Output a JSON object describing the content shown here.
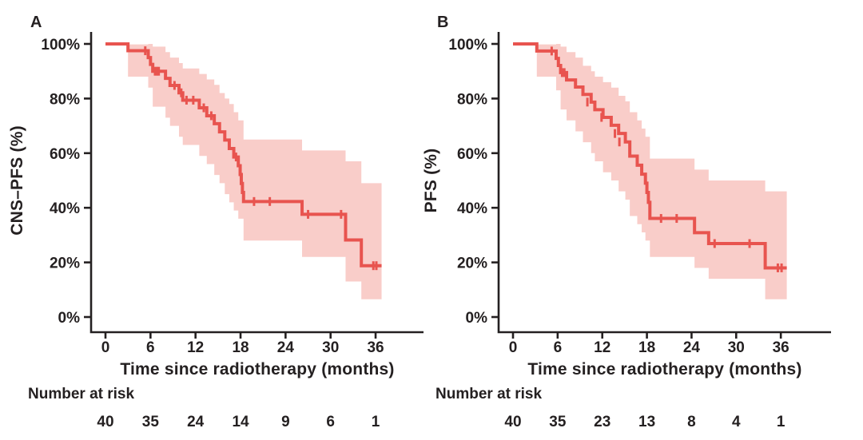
{
  "figure": {
    "background": "#ffffff",
    "text_color": "#242021",
    "panels": [
      {
        "panel_label": "A",
        "ylabel": "CNS–PFS (%)",
        "xlabel": "Time since radiotherapy (months)",
        "risk_label": "Number at risk"
      },
      {
        "panel_label": "B",
        "ylabel": "PFS (%)",
        "xlabel": "Time since radiotherapy (months)",
        "risk_label": "Number at risk"
      }
    ]
  },
  "chart_data": [
    {
      "type": "line",
      "subtype": "kaplan-meier-step",
      "panel": "A",
      "title": "A",
      "ylabel": "CNS–PFS (%)",
      "xlabel": "Time since radiotherapy (months)",
      "xticks": [
        0,
        6,
        12,
        18,
        24,
        30,
        36
      ],
      "yticks": [
        0,
        20,
        40,
        60,
        80,
        100
      ],
      "ytick_format": "percent",
      "xlim": [
        0,
        38
      ],
      "ylim": [
        0,
        100
      ],
      "grid": false,
      "legend": null,
      "line_color": "#e8544f",
      "band_color": "#f9cdc9",
      "curve_end_t": 36.8,
      "steps": {
        "t": [
          0,
          3.0,
          5.7,
          6.0,
          6.3,
          8.0,
          8.6,
          9.8,
          10.3,
          12.5,
          13.5,
          14.5,
          15.2,
          15.9,
          16.5,
          17.1,
          17.7,
          17.95,
          18.1,
          18.25,
          18.4,
          26.2,
          32.0,
          34.1
        ],
        "survival_pct": [
          100,
          97.5,
          95.0,
          92.5,
          90.0,
          87.4,
          84.8,
          82.1,
          79.4,
          76.6,
          73.7,
          70.8,
          67.8,
          64.8,
          61.7,
          58.6,
          55.4,
          52.2,
          48.9,
          45.6,
          42.3,
          37.6,
          28.2,
          18.8
        ]
      },
      "censor_marks": {
        "t": [
          5.3,
          6.6,
          6.85,
          7.1,
          9.2,
          10.1,
          10.8,
          11.7,
          13.1,
          14.1,
          17.4,
          19.8,
          21.9,
          27.0,
          31.4,
          35.7,
          36.1
        ],
        "survival_pct": [
          97.5,
          90.0,
          90.0,
          90.0,
          84.8,
          82.1,
          79.4,
          79.4,
          76.6,
          73.7,
          58.6,
          42.3,
          42.3,
          37.6,
          37.6,
          18.8,
          18.8
        ]
      },
      "confidence_band": {
        "t": [
          3.0,
          5.7,
          6.3,
          8.0,
          8.6,
          9.8,
          10.3,
          12.5,
          13.5,
          14.5,
          15.2,
          15.9,
          16.5,
          17.1,
          17.7,
          18.4,
          26.2,
          32.0,
          34.1
        ],
        "lower_pct": [
          88,
          84,
          77,
          73,
          70,
          66,
          63,
          59,
          56,
          52,
          49,
          45,
          42,
          39,
          36,
          28,
          22,
          13,
          6.5
        ],
        "upper_pct": [
          99.8,
          100,
          99,
          97,
          95,
          93,
          91,
          89,
          87,
          85,
          82,
          80,
          78,
          75,
          72,
          65,
          61,
          57,
          49
        ]
      },
      "number_at_risk": {
        "times": [
          0,
          6,
          12,
          18,
          24,
          30,
          36
        ],
        "counts": [
          40,
          35,
          24,
          14,
          9,
          6,
          1
        ]
      }
    },
    {
      "type": "line",
      "subtype": "kaplan-meier-step",
      "panel": "B",
      "title": "B",
      "ylabel": "PFS (%)",
      "xlabel": "Time since radiotherapy (months)",
      "xticks": [
        0,
        6,
        12,
        18,
        24,
        30,
        36
      ],
      "yticks": [
        0,
        20,
        40,
        60,
        80,
        100
      ],
      "ytick_format": "percent",
      "xlim": [
        0,
        38
      ],
      "ylim": [
        0,
        100
      ],
      "grid": false,
      "legend": null,
      "line_color": "#e8544f",
      "band_color": "#f9cdc9",
      "curve_end_t": 36.8,
      "steps": {
        "t": [
          0,
          3.2,
          5.8,
          6.1,
          6.4,
          7.2,
          8.4,
          9.4,
          10.5,
          11.0,
          12.1,
          13.2,
          14.2,
          15.1,
          15.7,
          16.7,
          17.3,
          17.8,
          18.0,
          18.2,
          18.4,
          24.4,
          26.3,
          33.9
        ],
        "survival_pct": [
          100,
          97.4,
          94.7,
          92.1,
          89.5,
          86.8,
          84.2,
          81.5,
          78.7,
          75.9,
          73.1,
          70.2,
          67.2,
          64.1,
          58.9,
          55.6,
          52.3,
          49.0,
          45.6,
          42.0,
          36.1,
          30.9,
          26.9,
          18.0
        ]
      },
      "censor_marks": {
        "t": [
          5.2,
          6.6,
          6.9,
          10.0,
          11.9,
          13.7,
          14.3,
          19.9,
          22.0,
          27.1,
          31.8,
          35.6,
          36.1
        ],
        "survival_pct": [
          97.4,
          89.5,
          89.5,
          78.7,
          73.1,
          67.2,
          64.1,
          36.1,
          36.1,
          26.9,
          26.9,
          18.0,
          18.0
        ]
      },
      "confidence_band": {
        "t": [
          3.2,
          5.8,
          6.4,
          7.2,
          8.4,
          9.4,
          10.5,
          11.0,
          12.1,
          13.2,
          14.2,
          15.1,
          15.7,
          16.7,
          17.3,
          17.8,
          18.4,
          24.4,
          26.3,
          33.9
        ],
        "lower_pct": [
          88,
          83,
          76,
          72,
          68,
          64,
          60,
          57,
          53,
          50,
          46,
          43,
          37,
          34,
          31,
          28,
          22,
          18,
          14,
          6.5
        ],
        "upper_pct": [
          99.8,
          100,
          99,
          97,
          95,
          92,
          90,
          88,
          86,
          84,
          81,
          79,
          75,
          72,
          69,
          66,
          58,
          54,
          50,
          46
        ]
      },
      "number_at_risk": {
        "times": [
          0,
          6,
          12,
          18,
          24,
          30,
          36
        ],
        "counts": [
          40,
          35,
          23,
          13,
          8,
          4,
          1
        ]
      }
    }
  ]
}
